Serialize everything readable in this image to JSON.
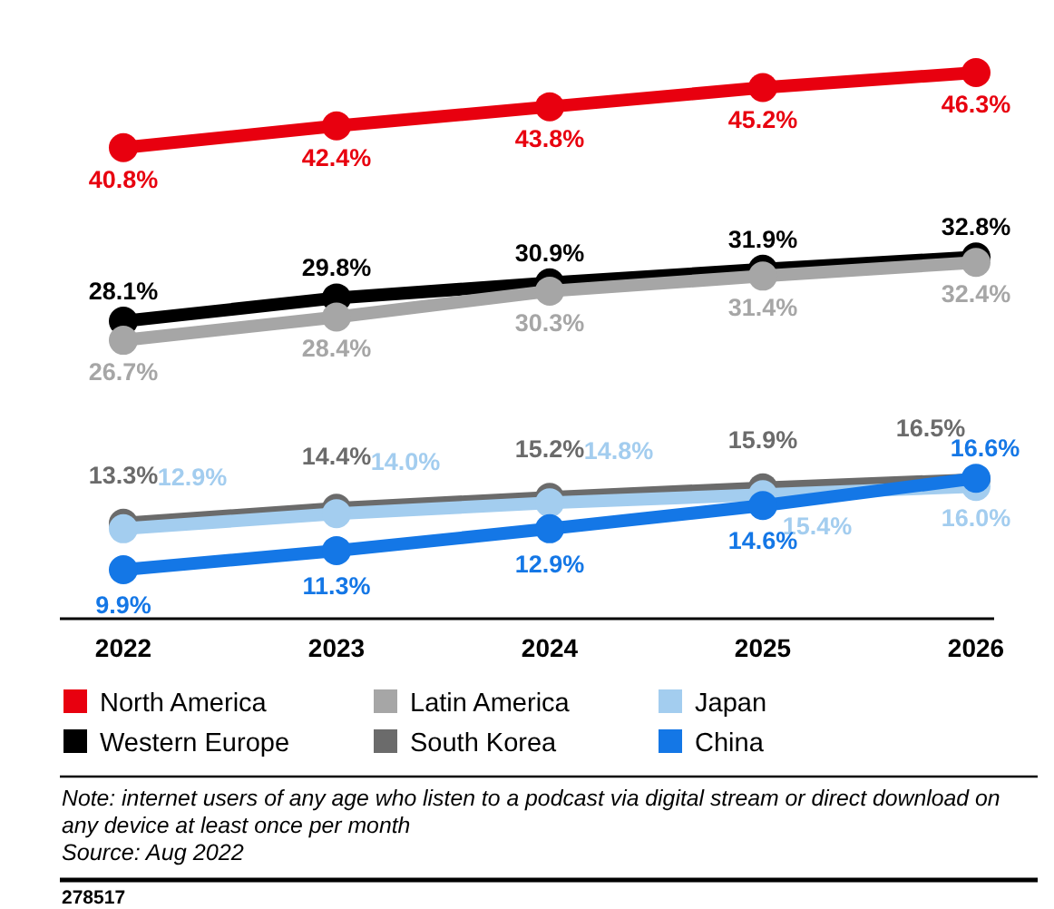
{
  "chart_data": {
    "type": "line",
    "categories": [
      "2022",
      "2023",
      "2024",
      "2025",
      "2026"
    ],
    "series": [
      {
        "name": "North America",
        "color": "#e8000f",
        "values": [
          40.8,
          42.4,
          43.8,
          45.2,
          46.3
        ],
        "value_labels": [
          "40.8%",
          "42.4%",
          "43.8%",
          "45.2%",
          "46.3%"
        ]
      },
      {
        "name": "Western Europe",
        "color": "#000000",
        "values": [
          28.1,
          29.8,
          30.9,
          31.9,
          32.8
        ],
        "value_labels": [
          "28.1%",
          "29.8%",
          "30.9%",
          "31.9%",
          "32.8%"
        ]
      },
      {
        "name": "Latin America",
        "color": "#a6a6a6",
        "values": [
          26.7,
          28.4,
          30.3,
          31.4,
          32.4
        ],
        "value_labels": [
          "26.7%",
          "28.4%",
          "30.3%",
          "31.4%",
          "32.4%"
        ]
      },
      {
        "name": "South Korea",
        "color": "#6b6b6b",
        "values": [
          13.3,
          14.4,
          15.2,
          15.9,
          16.5
        ],
        "value_labels": [
          "13.3%",
          "14.4%",
          "15.2%",
          "15.9%",
          "16.5%"
        ]
      },
      {
        "name": "Japan",
        "color": "#a3cdef",
        "values": [
          12.9,
          14.0,
          14.8,
          15.4,
          16.0
        ],
        "value_labels": [
          "12.9%",
          "14.0%",
          "14.8%",
          "15.4%",
          "16.0%"
        ]
      },
      {
        "name": "China",
        "color": "#1477e6",
        "values": [
          9.9,
          11.3,
          12.9,
          14.6,
          16.6
        ],
        "value_labels": [
          "9.9%",
          "11.3%",
          "12.9%",
          "14.6%",
          "16.6%"
        ]
      }
    ],
    "marker": "circle",
    "legend": "bottom",
    "annotations": [
      "Note: internet users of any age who listen to a podcast via digital stream or direct download on any device at least once per month",
      "Source: Aug 2022",
      "278517"
    ]
  }
}
